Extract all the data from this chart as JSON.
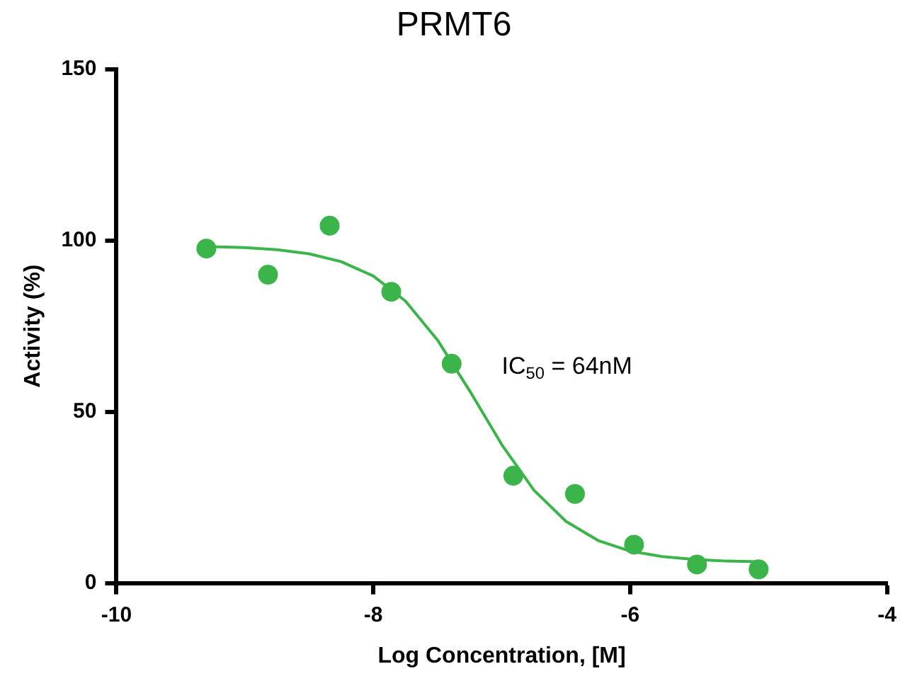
{
  "chart_data": {
    "type": "scatter",
    "title": "PRMT6",
    "xlabel": "Log Concentration, [M]",
    "ylabel": "Activity (%)",
    "xlim": [
      -10,
      -4
    ],
    "xticks": [
      -10,
      -8,
      -6,
      -4
    ],
    "ylim": [
      0,
      150
    ],
    "yticks": [
      0,
      50,
      100,
      150
    ],
    "grid": false,
    "legend": false,
    "annotations": [
      "IC$_{50}$ = 64nM"
    ],
    "series": [
      {
        "color": "#3bb44a",
        "marker": "circle",
        "x": [
          -9.3,
          -8.82,
          -8.34,
          -7.86,
          -7.39,
          -6.91,
          -6.43,
          -5.97,
          -5.48,
          -5.0
        ],
        "values": [
          97.6,
          90,
          104.3,
          85,
          64,
          31.3,
          26,
          11.2,
          5.4,
          4
        ]
      },
      {
        "type": "line",
        "color": "#3bb44a",
        "marker": "none",
        "line_style": "solid",
        "x": [
          -9.3,
          -9,
          -8.75,
          -8.5,
          -8.25,
          -8,
          -7.75,
          -7.5,
          -7.25,
          -7,
          -6.75,
          -6.5,
          -6.25,
          -6,
          -5.75,
          -5.5,
          -5.25,
          -5
        ],
        "values": [
          98.2,
          97.9,
          97.3,
          96.1,
          93.8,
          89.6,
          82.3,
          70.9,
          56.1,
          40.4,
          27.1,
          18.0,
          12.4,
          9.3,
          7.7,
          6.9,
          6.4,
          6.2
        ]
      }
    ]
  }
}
